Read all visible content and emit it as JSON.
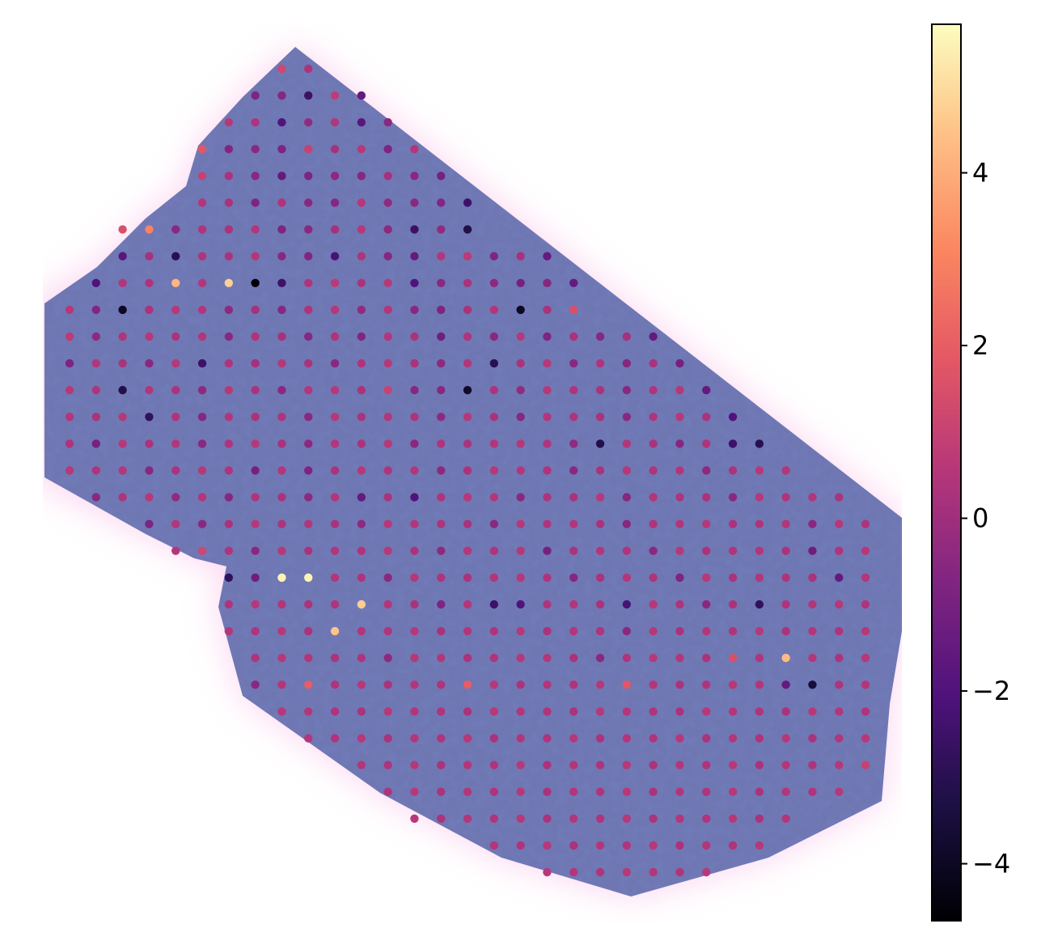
{
  "chart_data": {
    "type": "spatial",
    "colormap": "magma",
    "clim": [
      -4.66,
      5.72
    ],
    "colorbar_ticks": [
      {
        "value": -4,
        "label": "−4"
      },
      {
        "value": -2,
        "label": "−2"
      },
      0,
      2,
      4
    ],
    "rows": [
      {
        "y": 0,
        "x0": 8,
        "values": [
          1.2,
          0.3
        ]
      },
      {
        "y": 1,
        "x0": 7,
        "values": [
          -0.8,
          -0.6,
          -2.5,
          0.8,
          -1.5
        ]
      },
      {
        "y": 2,
        "x0": 6,
        "values": [
          0.6,
          0.4,
          -2,
          -0.3,
          0.5,
          -1.8,
          -0.5
        ]
      },
      {
        "y": 3,
        "x0": 5,
        "values": [
          1.8,
          -0.7,
          -0.5,
          -0.8,
          1,
          0.2,
          0.6,
          -0.8,
          0.5
        ]
      },
      {
        "y": 4,
        "x0": 5,
        "values": [
          1,
          0.3,
          -0.5,
          -1.5,
          -0.8,
          -0.4,
          -0.6,
          0.2,
          -0.5,
          -1
        ]
      },
      {
        "y": 5,
        "x0": 5,
        "values": [
          0.5,
          0.3,
          -0.8,
          0.4,
          -0.5,
          -0.6,
          0.6,
          -0.3,
          -0.5,
          -0.7,
          -2.5
        ]
      },
      {
        "y": 6,
        "x0": 2,
        "values": [
          1.5,
          3,
          -0.5,
          0.4,
          0.3,
          0.5,
          -0.8,
          -0.5,
          0.2,
          0.6,
          -0.4,
          -2.5,
          -0.3,
          -3.2
        ]
      },
      {
        "y": 7,
        "x0": 2,
        "values": [
          -1.8,
          0.2,
          -3,
          0.4,
          0.3,
          0.5,
          -0.5,
          -0.7,
          -2.2,
          0.4,
          -0.6,
          -1.5,
          0.5,
          0.7,
          -0.8,
          0.2,
          -1.5
        ]
      },
      {
        "y": 8,
        "x0": 1,
        "values": [
          -2,
          0.5,
          0.4,
          4.2,
          0.5,
          4.8,
          -4.6,
          -2.5,
          0.4,
          0.7,
          0.3,
          0.6,
          -2,
          -0.5,
          0.3,
          -0.4,
          -1,
          -0.6,
          -1.5
        ]
      },
      {
        "y": 9,
        "x0": 0,
        "values": [
          0.6,
          -0.7,
          -4,
          0.3,
          0.6,
          0.5,
          -0.4,
          0.2,
          -0.6,
          0.4,
          0.6,
          -0.3,
          0.5,
          -0.5,
          -0.8,
          0.3,
          0.5,
          -4,
          0.3,
          1.5
        ]
      },
      {
        "y": 10,
        "x0": 0,
        "values": [
          0.7,
          -0.4,
          0.4,
          0.6,
          0.3,
          0.5,
          -0.5,
          0.4,
          0.2,
          -0.6,
          0.4,
          -0.7,
          0.5,
          0.3,
          -1.2,
          0.4,
          -0.5,
          0.6,
          -0.8,
          0.3,
          -0.6,
          0.2,
          -1.5
        ]
      },
      {
        "y": 11,
        "x0": 0,
        "values": [
          -0.8,
          0.5,
          0.3,
          -0.5,
          0.6,
          -2.5,
          0.4,
          0.2,
          0.6,
          0.3,
          -0.5,
          0.4,
          0.6,
          0.3,
          -0.4,
          0.5,
          -3,
          0.3,
          0.6,
          -0.5,
          0.4,
          -0.6,
          0.3,
          -1
        ]
      },
      {
        "y": 12,
        "x0": 0,
        "values": [
          0.6,
          0.4,
          -3.2,
          0.5,
          0.3,
          -0.4,
          0.6,
          0.3,
          -0.5,
          0.5,
          0.6,
          0.3,
          1,
          -0.6,
          -0.5,
          -3.8,
          0.4,
          -0.3,
          0.6,
          0.4,
          0.3,
          -0.5,
          0.4,
          0.6,
          -1.5
        ]
      },
      {
        "y": 13,
        "x0": 0,
        "values": [
          0.5,
          0.3,
          0.6,
          -2.8,
          0.4,
          -0.6,
          0.5,
          0.3,
          0.4,
          -0.5,
          0.6,
          0.3,
          0.5,
          0.4,
          -0.4,
          0.6,
          0.3,
          -0.6,
          0.5,
          0.4,
          0.3,
          -0.5,
          0.4,
          0.6,
          0.3,
          -2
        ]
      },
      {
        "y": 14,
        "x0": 0,
        "values": [
          0.4,
          -1,
          0.6,
          0.3,
          0.5,
          -0.5,
          0.4,
          0.6,
          0.3,
          -0.4,
          0.5,
          0.3,
          0.6,
          -0.5,
          0.4,
          0.3,
          0.5,
          0.6,
          0.4,
          -0.3,
          -3.2,
          0.5,
          0.3,
          -0.6,
          0.4,
          -2.5,
          -3
        ]
      },
      {
        "y": 15,
        "x0": 0,
        "values": [
          0.6,
          0.4,
          0.5,
          -0.5,
          0.3,
          0.6,
          0.4,
          -1,
          0.5,
          -0.8,
          0.3,
          0.6,
          0.4,
          0.5,
          -0.4,
          0.3,
          0.6,
          0.5,
          0.4,
          -0.5,
          0.3,
          0.6,
          0.4,
          0.5,
          -0.4,
          0.3,
          0.6,
          0.5
        ]
      },
      {
        "y": 16,
        "x0": 1,
        "values": [
          -0.5,
          0.4,
          0.6,
          -0.3,
          0.5,
          -0.6,
          0.4,
          0.3,
          -0.4,
          0.5,
          -1.5,
          0.3,
          -2,
          0.4,
          0.6,
          0.5,
          -0.5,
          0.4,
          0.3,
          0.6,
          -0.6,
          0.5,
          0.4,
          0.3,
          -0.5,
          0.6,
          0.4,
          0.5,
          0.3
        ]
      },
      {
        "y": 17,
        "x0": 3,
        "values": [
          -0.8,
          0.5,
          -0.5,
          0.3,
          0.6,
          0.4,
          0.5,
          0.3,
          -0.4,
          0.6,
          0.5,
          0.4,
          0.3,
          -0.5,
          0.6,
          0.4,
          0.5,
          0.3,
          -0.6,
          0.4,
          0.5,
          0.6,
          0.3,
          0.4,
          0.5,
          -0.5,
          0.6,
          0.4
        ]
      },
      {
        "y": 18,
        "x0": 4,
        "values": [
          0.5,
          1.2,
          0.4,
          -0.5,
          0.6,
          0.3,
          0.5,
          0.4,
          0.6,
          0.3,
          -0.4,
          0.5,
          0.4,
          0.6,
          -1,
          0.3,
          0.5,
          0.4,
          -0.5,
          0.6,
          0.3,
          0.4,
          0.5,
          0.3,
          -1.2,
          0.4,
          0.6
        ]
      },
      {
        "y": 19,
        "x0": 6,
        "values": [
          -2.8,
          -1.2,
          5.5,
          5.5,
          0.5,
          0.4,
          -0.5,
          0.6,
          0.4,
          0.3,
          0.5,
          0.6,
          0.4,
          -0.6,
          0.3,
          0.5,
          0.4,
          -0.8,
          0.6,
          0.3,
          0.5,
          0.4,
          0.3,
          -1.5,
          0.5
        ]
      },
      {
        "y": 20,
        "x0": 6,
        "values": [
          0.4,
          0.6,
          0.5,
          0.3,
          0.4,
          4.7,
          0.5,
          0.3,
          -0.8,
          0.5,
          -2.5,
          -2,
          0.4,
          0.5,
          0.3,
          -2.2,
          0.6,
          0.4,
          -0.5,
          0.3,
          -2.8,
          0.4,
          0.5,
          0.6,
          0.4
        ]
      },
      {
        "y": 21,
        "x0": 6,
        "values": [
          0.5,
          0.4,
          0.6,
          0.3,
          4.5,
          0.5,
          0.4,
          0.6,
          0.3,
          0.5,
          0.4,
          0.6,
          0.3,
          0.5,
          0.4,
          -0.5,
          0.6,
          0.3,
          0.5,
          0.4,
          0.6,
          0.3,
          0.5,
          0.4,
          0.6
        ]
      },
      {
        "y": 22,
        "x0": 7,
        "values": [
          0.4,
          0.6,
          0.5,
          0.3,
          0.4,
          -0.4,
          0.6,
          0.5,
          0.3,
          0.4,
          0.6,
          0.5,
          0.3,
          -0.5,
          0.4,
          0.6,
          0.5,
          0.3,
          1.5,
          0.4,
          4.3,
          0.5,
          0.3,
          0.6
        ]
      },
      {
        "y": 23,
        "x0": 7,
        "values": [
          -0.5,
          0.5,
          2,
          0.4,
          0.6,
          0.3,
          0.5,
          0.4,
          2,
          0.6,
          0.3,
          0.5,
          0.4,
          0.6,
          1.8,
          0.5,
          0.3,
          0.4,
          0.6,
          0.5,
          -1.5,
          -3.5,
          0.4,
          0.5
        ]
      },
      {
        "y": 24,
        "x0": 8,
        "values": [
          0.6,
          0.5,
          0.4,
          0.3,
          0.6,
          0.5,
          0.4,
          0.3,
          0.6,
          0.5,
          0.4,
          0.3,
          0.6,
          0.5,
          0.4,
          0.3,
          0.6,
          0.5,
          0.4,
          0.3,
          0.6,
          0.5,
          0.4
        ]
      },
      {
        "y": 25,
        "x0": 9,
        "values": [
          0.5,
          0.4,
          0.6,
          0.3,
          0.5,
          0.4,
          0.6,
          0.3,
          0.5,
          0.4,
          0.6,
          0.3,
          0.5,
          0.4,
          0.6,
          0.3,
          0.5,
          0.4,
          0.6,
          0.3,
          0.5,
          0.6
        ]
      },
      {
        "y": 26,
        "x0": 11,
        "values": [
          0.5,
          0.4,
          0.6,
          0.3,
          0.5,
          0.4,
          0.6,
          0.3,
          0.5,
          0.4,
          0.6,
          0.3,
          0.5,
          0.4,
          0.6,
          0.3,
          0.5,
          0.4,
          0.6,
          1
        ]
      },
      {
        "y": 27,
        "x0": 12,
        "values": [
          0.4,
          0.6,
          0.3,
          0.5,
          0.4,
          0.6,
          0.3,
          0.5,
          0.4,
          0.6,
          0.3,
          0.5,
          0.4,
          0.6,
          0.3,
          0.5,
          0.4,
          0.6
        ]
      },
      {
        "y": 28,
        "x0": 13,
        "values": [
          0.6,
          0.3,
          0.5,
          0.4,
          0.6,
          0.3,
          0.5,
          0.4,
          0.6,
          0.3,
          0.5,
          0.4,
          0.6,
          0.3,
          0.5
        ]
      },
      {
        "y": 29,
        "x0": 16,
        "values": [
          0.5,
          0.4,
          0.6,
          0.3,
          0.5,
          0.4,
          0.6,
          0.3,
          0.5,
          0.4,
          0.6
        ]
      },
      {
        "y": 30,
        "x0": 18,
        "values": [
          0.6,
          0.5,
          0.4,
          0.6,
          0.5,
          0.4,
          0.6
        ]
      }
    ]
  }
}
